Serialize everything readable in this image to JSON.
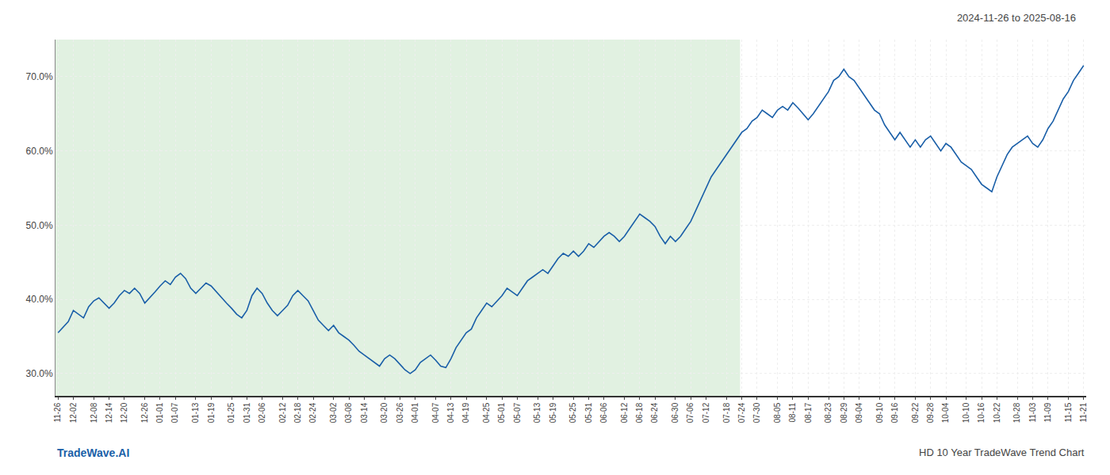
{
  "chart_data": {
    "type": "line",
    "title": "2024-11-26 to 2025-08-16",
    "annotations": [
      "TradeWave.AI",
      "HD 10 Year TradeWave Trend Chart"
    ],
    "color": "#1a5fa8",
    "grid": true,
    "ylim": [
      27.0,
      75.0
    ],
    "yticks": [
      {
        "value": 30.0,
        "label": "30.0%"
      },
      {
        "value": 40.0,
        "label": "40.0%"
      },
      {
        "value": 50.0,
        "label": "50.0%"
      },
      {
        "value": 60.0,
        "label": "60.0%"
      },
      {
        "value": 70.0,
        "label": "70.0%"
      }
    ],
    "categories": [
      "11-26",
      null,
      null,
      "12-02",
      null,
      null,
      null,
      "12-08",
      null,
      null,
      "12-14",
      null,
      null,
      "12-20",
      null,
      null,
      null,
      "12-26",
      null,
      null,
      "01-01",
      null,
      null,
      "01-07",
      null,
      null,
      null,
      "01-13",
      null,
      null,
      "01-19",
      null,
      null,
      null,
      "01-25",
      null,
      null,
      "01-31",
      null,
      null,
      "02-06",
      null,
      null,
      null,
      "02-12",
      null,
      null,
      "02-18",
      null,
      null,
      "02-24",
      null,
      null,
      null,
      "03-02",
      null,
      null,
      "03-08",
      null,
      null,
      "03-14",
      null,
      null,
      null,
      "03-20",
      null,
      null,
      "03-26",
      null,
      null,
      "04-01",
      null,
      null,
      null,
      "04-07",
      null,
      null,
      "04-13",
      null,
      null,
      "04-19",
      null,
      null,
      null,
      "04-25",
      null,
      null,
      "05-01",
      null,
      null,
      "05-07",
      null,
      null,
      null,
      "05-13",
      null,
      null,
      "05-19",
      null,
      null,
      null,
      "05-25",
      null,
      null,
      "05-31",
      null,
      null,
      "06-06",
      null,
      null,
      null,
      "06-12",
      null,
      null,
      "06-18",
      null,
      null,
      "06-24",
      null,
      null,
      null,
      "06-30",
      null,
      null,
      "07-06",
      null,
      null,
      "07-12",
      null,
      null,
      null,
      "07-18",
      null,
      null,
      "07-24",
      null,
      null,
      "07-30",
      null,
      null,
      null,
      "08-05",
      null,
      null,
      "08-11",
      null,
      null,
      "08-17",
      null,
      null,
      null,
      "08-23",
      null,
      null,
      "08-29",
      null,
      null,
      "09-04",
      null,
      null,
      null,
      "09-10",
      null,
      null,
      "09-16",
      null,
      null,
      null,
      "09-22",
      null,
      null,
      "09-28",
      null,
      null,
      "10-04",
      null,
      null,
      null,
      "10-10",
      null,
      null,
      "10-16",
      null,
      null,
      "10-22",
      null,
      null,
      null,
      "10-28",
      null,
      null,
      "11-03",
      null,
      null,
      "11-09",
      null,
      null,
      null,
      "11-15",
      null,
      null,
      "11-21"
    ],
    "values": [
      35.5,
      36.2,
      37.0,
      38.5,
      38.0,
      37.5,
      39.0,
      39.8,
      40.2,
      39.5,
      38.8,
      39.5,
      40.5,
      41.2,
      40.8,
      41.5,
      40.8,
      39.5,
      40.2,
      41.0,
      41.8,
      42.5,
      42.0,
      43.0,
      43.5,
      42.8,
      41.5,
      40.8,
      41.5,
      42.2,
      41.8,
      41.0,
      40.2,
      39.5,
      38.8,
      38.0,
      37.5,
      38.5,
      40.5,
      41.5,
      40.8,
      39.5,
      38.5,
      37.8,
      38.5,
      39.2,
      40.5,
      41.2,
      40.5,
      39.8,
      38.5,
      37.2,
      36.5,
      35.8,
      36.5,
      35.5,
      35.0,
      34.5,
      33.8,
      33.0,
      32.5,
      32.0,
      31.5,
      31.0,
      32.0,
      32.5,
      32.0,
      31.2,
      30.5,
      30.0,
      30.5,
      31.5,
      32.0,
      32.5,
      31.8,
      31.0,
      30.8,
      32.0,
      33.5,
      34.5,
      35.5,
      36.0,
      37.5,
      38.5,
      39.5,
      39.0,
      39.8,
      40.5,
      41.5,
      41.0,
      40.5,
      41.5,
      42.5,
      43.0,
      43.5,
      44.0,
      43.5,
      44.5,
      45.5,
      46.2,
      45.8,
      46.5,
      45.8,
      46.5,
      47.5,
      47.0,
      47.8,
      48.5,
      49.0,
      48.5,
      47.8,
      48.5,
      49.5,
      50.5,
      51.5,
      51.0,
      50.5,
      49.8,
      48.5,
      47.5,
      48.5,
      47.8,
      48.5,
      49.5,
      50.5,
      52.0,
      53.5,
      55.0,
      56.5,
      57.5,
      58.5,
      59.5,
      60.5,
      61.5,
      62.5,
      63.0,
      64.0,
      64.5,
      65.5,
      65.0,
      64.5,
      65.5,
      66.0,
      65.5,
      66.5,
      65.8,
      65.0,
      64.2,
      65.0,
      66.0,
      67.0,
      68.0,
      69.5,
      70.0,
      71.0,
      70.0,
      69.5,
      68.5,
      67.5,
      66.5,
      65.5,
      65.0,
      63.5,
      62.5,
      61.5,
      62.5,
      61.5,
      60.5,
      61.5,
      60.5,
      61.5,
      62.0,
      61.0,
      60.0,
      61.0,
      60.5,
      59.5,
      58.5,
      58.0,
      57.5,
      56.5,
      55.5,
      55.0,
      54.5,
      56.5,
      58.0,
      59.5,
      60.5,
      61.0,
      61.5,
      62.0,
      61.0,
      60.5,
      61.5,
      63.0,
      64.0,
      65.5,
      67.0,
      68.0,
      69.5,
      70.5,
      71.5
    ]
  }
}
